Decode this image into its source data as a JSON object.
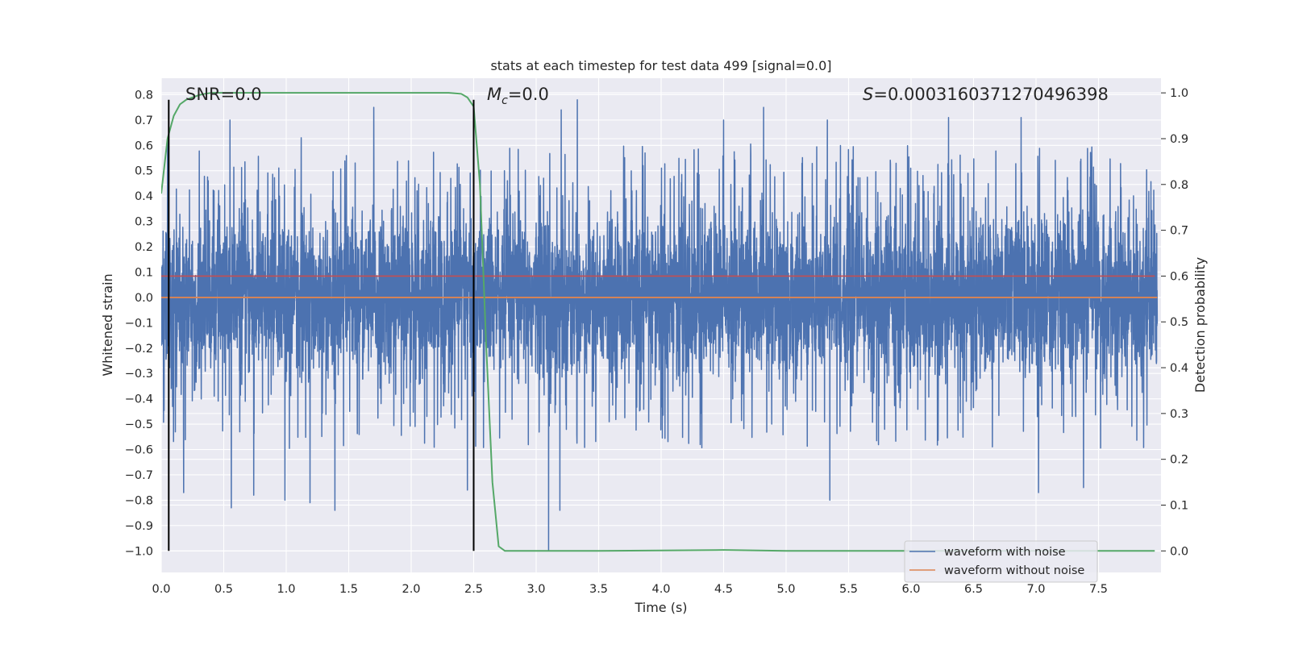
{
  "chart_data": {
    "type": "line",
    "title": "stats at each timestep for test data 499 [signal=0.0]",
    "xlabel": "Time (s)",
    "ylabel": "Whitened strain",
    "ylabel_right": "Detection probability",
    "xlim": [
      0.0,
      8.0
    ],
    "ylim": [
      -1.085,
      0.865
    ],
    "ylim_right": [
      -0.047,
      1.032
    ],
    "xticks": [
      0.0,
      0.5,
      1.0,
      1.5,
      2.0,
      2.5,
      3.0,
      3.5,
      4.0,
      4.5,
      5.0,
      5.5,
      6.0,
      6.5,
      7.0,
      7.5
    ],
    "xtick_labels": [
      "0.0",
      "0.5",
      "1.0",
      "1.5",
      "2.0",
      "2.5",
      "3.0",
      "3.5",
      "4.0",
      "4.5",
      "5.0",
      "5.5",
      "6.0",
      "6.5",
      "7.0",
      "7.5"
    ],
    "yticks": [
      0.8,
      0.7,
      0.6,
      0.5,
      0.4,
      0.3,
      0.2,
      0.1,
      0.0,
      -0.1,
      -0.2,
      -0.3,
      -0.4,
      -0.5,
      -0.6,
      -0.7,
      -0.8,
      -0.9,
      -1.0
    ],
    "ytick_labels": [
      "0.8",
      "0.7",
      "0.6",
      "0.5",
      "0.4",
      "0.3",
      "0.2",
      "0.1",
      "0.0",
      "−0.1",
      "−0.2",
      "−0.3",
      "−0.4",
      "−0.5",
      "−0.6",
      "−0.7",
      "−0.8",
      "−0.9",
      "−1.0"
    ],
    "yticks_right": [
      1.0,
      0.9,
      0.8,
      0.7,
      0.6,
      0.5,
      0.4,
      0.3,
      0.2,
      0.1,
      0.0
    ],
    "ytick_labels_right": [
      "1.0",
      "0.9",
      "0.8",
      "0.7",
      "0.6",
      "0.5",
      "0.4",
      "0.3",
      "0.2",
      "0.1",
      "0.0"
    ],
    "grid": true,
    "legend_position": "bottom-right",
    "annotations": {
      "snr": "SNR=0.0",
      "mc_symbol": "M",
      "mc_sub": "c",
      "mc_value": "=0.0",
      "s_symbol": "S",
      "s_value": "=0.00031603712704963​98"
    },
    "vertical_lines": [
      0.06,
      2.5
    ],
    "vertical_line_range": [
      -1.0,
      0.78
    ],
    "threshold": {
      "value": 0.6,
      "color": "#c44e52"
    },
    "series": [
      {
        "name": "waveform with noise",
        "color": "#4c72b0",
        "axis": "left",
        "kind": "noise",
        "x_range": [
          0.0,
          7.97
        ],
        "samples": 6000,
        "core_sigma": 0.16,
        "envelope_upper": [
          0.63,
          0.78
        ],
        "envelope_lower": [
          -1.0,
          -0.84
        ],
        "spikes": [
          {
            "x": 0.05,
            "y": 0.62
          },
          {
            "x": 0.09,
            "y": -0.43
          },
          {
            "x": 0.18,
            "y": -0.77
          },
          {
            "x": 0.55,
            "y": 0.7
          },
          {
            "x": 0.56,
            "y": -0.83
          },
          {
            "x": 0.74,
            "y": -0.78
          },
          {
            "x": 0.99,
            "y": -0.8
          },
          {
            "x": 1.12,
            "y": 0.63
          },
          {
            "x": 1.19,
            "y": -0.81
          },
          {
            "x": 1.39,
            "y": -0.84
          },
          {
            "x": 1.7,
            "y": 0.75
          },
          {
            "x": 2.45,
            "y": -0.76
          },
          {
            "x": 2.5,
            "y": 0.75
          },
          {
            "x": 3.1,
            "y": -1.0
          },
          {
            "x": 3.19,
            "y": -0.84
          },
          {
            "x": 3.2,
            "y": 0.74
          },
          {
            "x": 3.33,
            "y": 0.78
          },
          {
            "x": 4.5,
            "y": 0.7
          },
          {
            "x": 4.82,
            "y": 0.75
          },
          {
            "x": 5.33,
            "y": 0.7
          },
          {
            "x": 5.35,
            "y": -0.8
          },
          {
            "x": 6.3,
            "y": 0.71
          },
          {
            "x": 6.88,
            "y": 0.71
          },
          {
            "x": 7.02,
            "y": -0.77
          },
          {
            "x": 7.38,
            "y": -0.75
          },
          {
            "x": 4.72,
            "y": -0.2
          }
        ]
      },
      {
        "name": "waveform without noise",
        "color": "#dd8452",
        "axis": "left",
        "x": [
          0.0,
          7.97
        ],
        "y": [
          0.0,
          0.0
        ]
      },
      {
        "name": "Detection probability",
        "color": "#55a868",
        "axis": "right",
        "x": [
          0.0,
          0.05,
          0.1,
          0.15,
          0.2,
          0.25,
          0.3,
          0.35,
          0.4,
          0.5,
          0.8,
          1.2,
          1.6,
          2.0,
          2.3,
          2.4,
          2.45,
          2.5,
          2.55,
          2.6,
          2.65,
          2.7,
          2.75,
          2.9,
          3.5,
          4.0,
          4.5,
          5.0,
          6.0,
          7.0,
          7.95
        ],
        "y": [
          0.78,
          0.9,
          0.95,
          0.975,
          0.985,
          0.99,
          0.995,
          0.998,
          1.0,
          1.0,
          1.0,
          1.0,
          1.0,
          1.0,
          1.0,
          0.998,
          0.99,
          0.97,
          0.8,
          0.45,
          0.15,
          0.01,
          0.0,
          0.0,
          0.0,
          0.001,
          0.002,
          0.0,
          0.0,
          0.0,
          0.0
        ]
      }
    ]
  }
}
